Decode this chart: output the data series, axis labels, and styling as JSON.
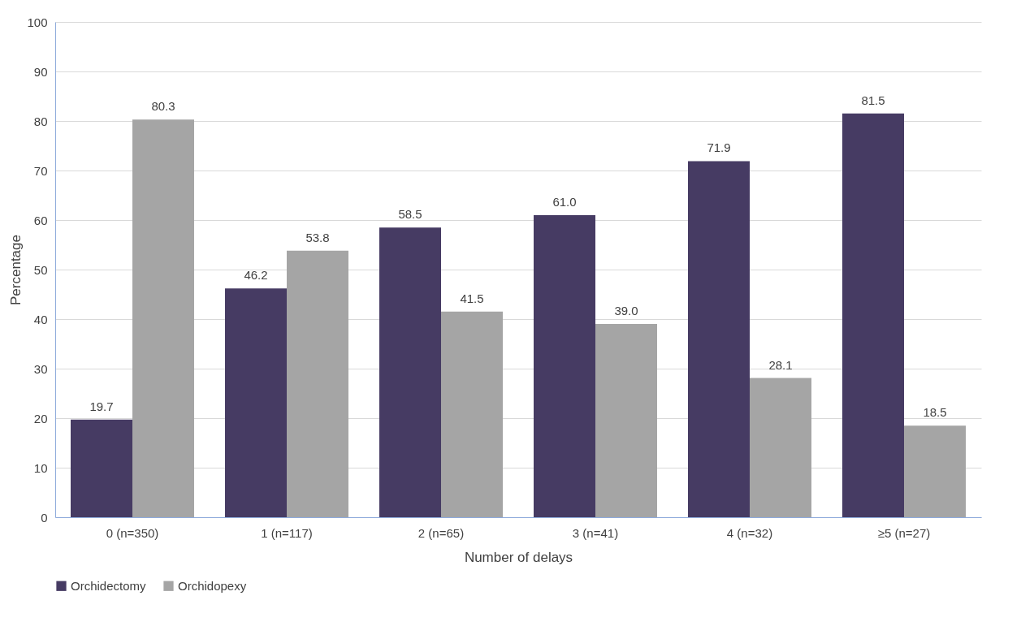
{
  "chart_data": {
    "type": "bar",
    "xlabel": "Number of delays",
    "ylabel": "Percentage",
    "categories": [
      "0 (n=350)",
      "1 (n=117)",
      "2 (n=65)",
      "3 (n=41)",
      "4 (n=32)",
      "≥5 (n=27)"
    ],
    "series": [
      {
        "name": "Orchidectomy",
        "color": "#463b63",
        "values": [
          19.7,
          46.2,
          58.5,
          61.0,
          71.9,
          81.5
        ],
        "value_labels": [
          "19.7",
          "46.2",
          "58.5",
          "61.0",
          "71.9",
          "81.5"
        ]
      },
      {
        "name": "Orchidopexy",
        "color": "#a5a5a5",
        "values": [
          80.3,
          53.8,
          41.5,
          39.0,
          28.1,
          18.5
        ],
        "value_labels": [
          "80.3",
          "53.8",
          "41.5",
          "39.0",
          "28.1",
          "18.5"
        ]
      }
    ],
    "ylim": [
      0,
      100
    ],
    "yticks": [
      0,
      10,
      20,
      30,
      40,
      50,
      60,
      70,
      80,
      90,
      100
    ],
    "grid": "y",
    "legend": "bottom"
  }
}
